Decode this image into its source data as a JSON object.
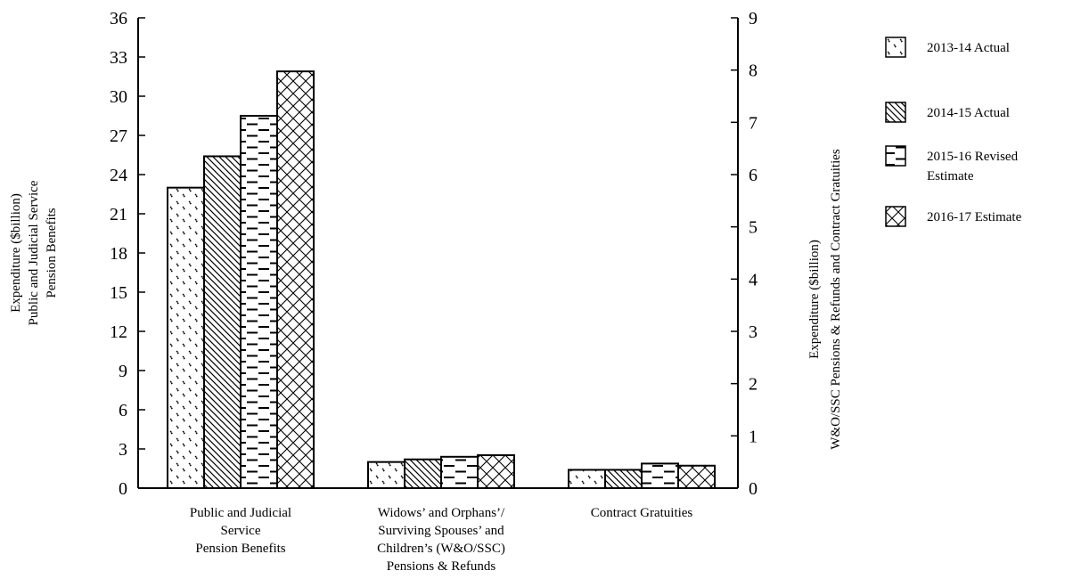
{
  "chart_data": {
    "type": "bar",
    "title": "",
    "categories": [
      [
        "Public and Judicial",
        "Service",
        "Pension Benefits"
      ],
      [
        "Widows’ and Orphans’/",
        "Surviving Spouses’ and",
        "Children’s (W&O/SSC)",
        "Pensions & Refunds"
      ],
      [
        "Contract Gratuities"
      ]
    ],
    "y_left": {
      "label": [
        "Expenditure ($billion)",
        "Public and Judicial Service",
        "Pension Benefits"
      ],
      "ylim": [
        0,
        36
      ],
      "ticks": [
        0,
        3,
        6,
        9,
        12,
        15,
        18,
        21,
        24,
        27,
        30,
        33,
        36
      ]
    },
    "y_right": {
      "label": [
        "Expenditure ($billion)",
        "W&O/SSC Pensions & Refunds and Contract Gratuities"
      ],
      "ylim": [
        0,
        9
      ],
      "ticks": [
        0,
        1,
        2,
        3,
        4,
        5,
        6,
        7,
        8,
        9
      ]
    },
    "category_axis": [
      "left",
      "right",
      "right"
    ],
    "series": [
      {
        "name": "2013-14 Actual",
        "pattern": "dots",
        "values": [
          23.0,
          0.5,
          0.35
        ]
      },
      {
        "name": "2014-15 Actual",
        "pattern": "diagonal",
        "values": [
          25.4,
          0.55,
          0.35
        ]
      },
      {
        "name": "2015-16 Revised Estimate",
        "legend_lines": [
          "2015-16 Revised",
          "Estimate"
        ],
        "pattern": "dashes",
        "values": [
          28.5,
          0.6,
          0.47
        ]
      },
      {
        "name": "2016-17 Estimate",
        "pattern": "crosshatch",
        "values": [
          31.9,
          0.63,
          0.43
        ]
      }
    ],
    "grid": false,
    "legend_position": "right"
  }
}
